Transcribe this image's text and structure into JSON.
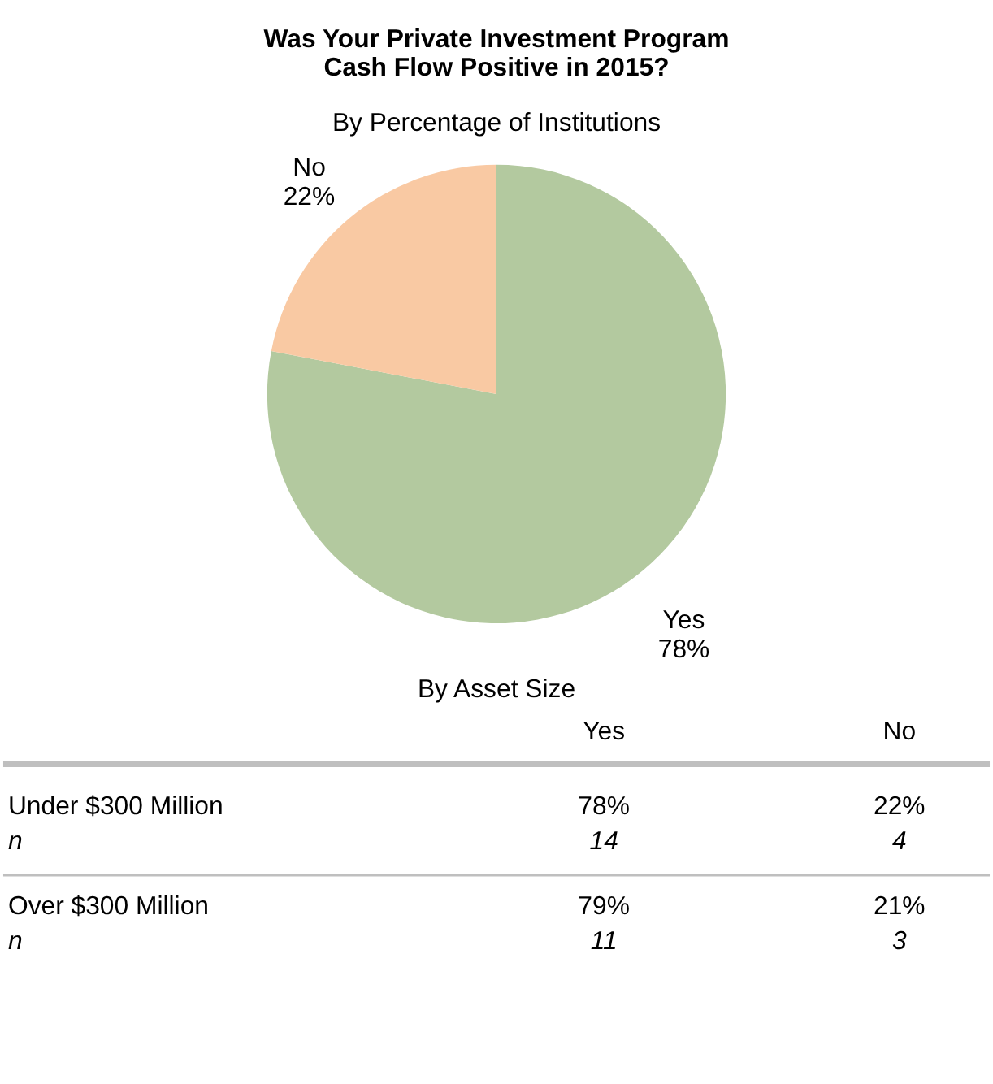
{
  "chart_data": [
    {
      "type": "pie",
      "title": "Was Your Private Investment Program\nCash Flow Positive in 2015?",
      "subtitle": "By Percentage of Institutions",
      "categories": [
        "Yes",
        "No"
      ],
      "values": [
        78,
        22
      ],
      "colors": [
        "#b3c99f",
        "#f9c9a3"
      ],
      "value_labels": [
        "78%",
        "22%"
      ],
      "legend": false
    },
    {
      "type": "other",
      "title": "By Asset Size",
      "categories": [
        "Yes",
        "No"
      ],
      "y_categories": [
        "Under $300 Million",
        "n",
        "Over $300 Million",
        "n"
      ],
      "cell_labels": [
        [
          "78%",
          "22%"
        ],
        [
          "14",
          "4"
        ],
        [
          "79%",
          "21%"
        ],
        [
          "11",
          "3"
        ]
      ]
    }
  ]
}
